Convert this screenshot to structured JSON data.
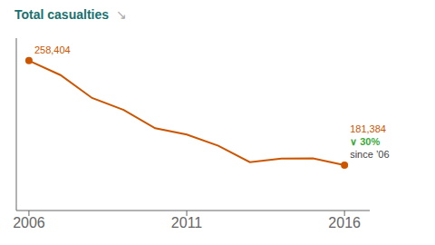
{
  "chart_data": {
    "type": "line",
    "title": "Total casualties",
    "x": [
      2006,
      2007,
      2008,
      2009,
      2010,
      2011,
      2012,
      2013,
      2014,
      2015,
      2016
    ],
    "values": [
      258404,
      247780,
      230905,
      222146,
      208648,
      203950,
      195723,
      183670,
      186189,
      186460,
      181384
    ],
    "color": "#cc5500",
    "xlim": [
      2005.6,
      2016.8
    ],
    "ylim": [
      148000,
      275000
    ],
    "xticks": [
      2006,
      2011,
      2016
    ],
    "grid": false,
    "tick_labels": "x",
    "annotations": [
      {
        "text": "↘"
      },
      {
        "text": "258,404",
        "x": 2006,
        "y": 258404
      },
      {
        "text": "181,384",
        "x": 2016,
        "y": 181384
      },
      {
        "text": "∨ 30%",
        "x": 2016,
        "y": 181384
      },
      {
        "text": "since ’06",
        "x": 2016,
        "y": 181384
      }
    ]
  }
}
